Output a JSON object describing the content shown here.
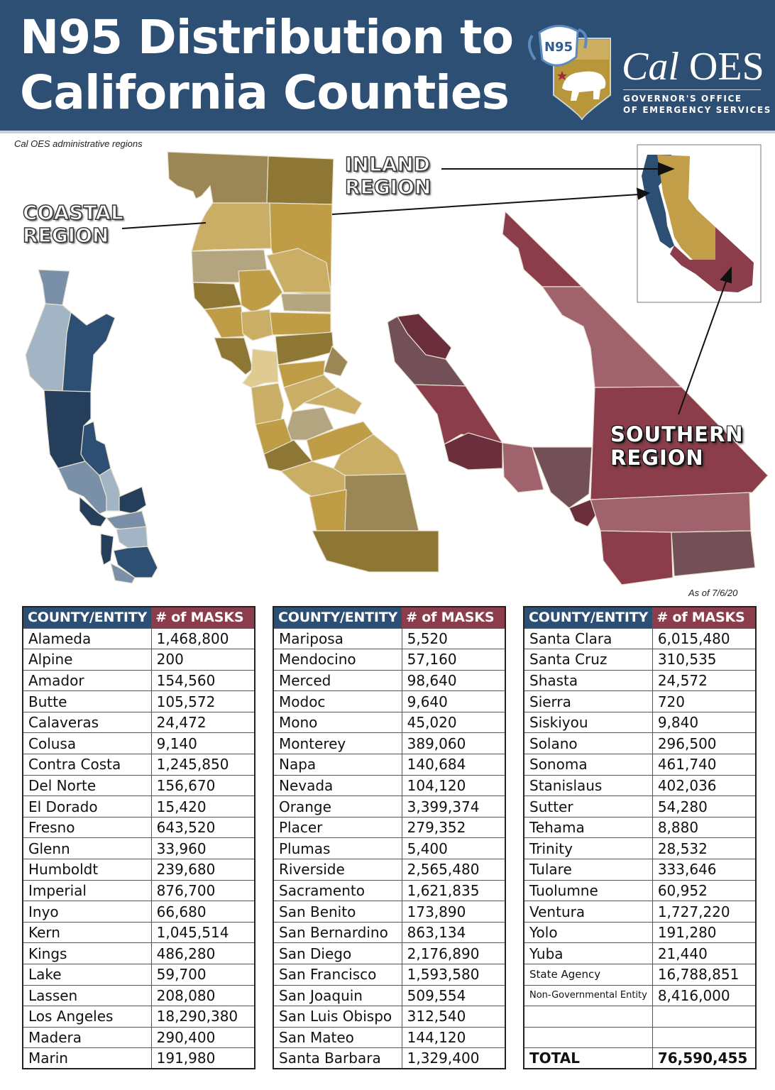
{
  "header": {
    "title_line1": "N95 Distribution to",
    "title_line2": "California Counties",
    "background_color": "#2e4f74",
    "logo": {
      "mask_label": "N95",
      "brand": "Cal OES",
      "brand_italic": "Cal",
      "brand_rest": " OES",
      "subtitle_line1": "GOVERNOR'S OFFICE",
      "subtitle_line2": "OF EMERGENCY SERVICES",
      "shield_color": "#b8963a",
      "star_color": "#a3283a"
    }
  },
  "map": {
    "caption": "Cal OES administrative regions",
    "regions": [
      {
        "name": "coastal",
        "line1": "COASTAL",
        "line2": "REGION",
        "color": "#2e4f74"
      },
      {
        "name": "inland",
        "line1": "INLAND",
        "line2": "REGION",
        "color": "#c19e47"
      },
      {
        "name": "southern",
        "line1": "SOUTHERN",
        "line2": "REGION",
        "color": "#8b3d4b"
      }
    ],
    "as_of": "As of  7/6/20"
  },
  "table": {
    "col_county": "COUNTY/ENTITY",
    "col_masks": "# of MASKS",
    "header_county_color": "#2e4f74",
    "header_masks_color": "#8b3d4b",
    "columns": [
      [
        {
          "county": "Alameda",
          "masks": "1,468,800"
        },
        {
          "county": "Alpine",
          "masks": "200"
        },
        {
          "county": "Amador",
          "masks": "154,560"
        },
        {
          "county": "Butte",
          "masks": "105,572"
        },
        {
          "county": "Calaveras",
          "masks": "24,472"
        },
        {
          "county": "Colusa",
          "masks": "9,140"
        },
        {
          "county": "Contra Costa",
          "masks": "1,245,850"
        },
        {
          "county": "Del Norte",
          "masks": "156,670"
        },
        {
          "county": "El Dorado",
          "masks": "15,420"
        },
        {
          "county": "Fresno",
          "masks": "643,520"
        },
        {
          "county": "Glenn",
          "masks": "33,960"
        },
        {
          "county": "Humboldt",
          "masks": "239,680"
        },
        {
          "county": "Imperial",
          "masks": "876,700"
        },
        {
          "county": "Inyo",
          "masks": "66,680"
        },
        {
          "county": "Kern",
          "masks": "1,045,514"
        },
        {
          "county": "Kings",
          "masks": "486,280"
        },
        {
          "county": "Lake",
          "masks": "59,700"
        },
        {
          "county": "Lassen",
          "masks": "208,080"
        },
        {
          "county": "Los Angeles",
          "masks": "18,290,380"
        },
        {
          "county": "Madera",
          "masks": "290,400"
        },
        {
          "county": "Marin",
          "masks": "191,980"
        }
      ],
      [
        {
          "county": "Mariposa",
          "masks": "5,520"
        },
        {
          "county": "Mendocino",
          "masks": "57,160"
        },
        {
          "county": "Merced",
          "masks": "98,640"
        },
        {
          "county": "Modoc",
          "masks": "9,640"
        },
        {
          "county": "Mono",
          "masks": "45,020"
        },
        {
          "county": "Monterey",
          "masks": "389,060"
        },
        {
          "county": "Napa",
          "masks": "140,684"
        },
        {
          "county": "Nevada",
          "masks": "104,120"
        },
        {
          "county": "Orange",
          "masks": "3,399,374"
        },
        {
          "county": "Placer",
          "masks": "279,352"
        },
        {
          "county": "Plumas",
          "masks": "5,400"
        },
        {
          "county": "Riverside",
          "masks": "2,565,480"
        },
        {
          "county": "Sacramento",
          "masks": "1,621,835"
        },
        {
          "county": "San Benito",
          "masks": "173,890"
        },
        {
          "county": "San Bernardino",
          "masks": "863,134"
        },
        {
          "county": "San Diego",
          "masks": "2,176,890"
        },
        {
          "county": "San Francisco",
          "masks": "1,593,580"
        },
        {
          "county": "San Joaquin",
          "masks": "509,554"
        },
        {
          "county": "San Luis Obispo",
          "masks": "312,540"
        },
        {
          "county": "San Mateo",
          "masks": "144,120"
        },
        {
          "county": "Santa Barbara",
          "masks": "1,329,400"
        }
      ],
      [
        {
          "county": "Santa Clara",
          "masks": "6,015,480"
        },
        {
          "county": "Santa Cruz",
          "masks": "310,535"
        },
        {
          "county": "Shasta",
          "masks": "24,572"
        },
        {
          "county": "Sierra",
          "masks": "720"
        },
        {
          "county": "Siskiyou",
          "masks": "9,840"
        },
        {
          "county": "Solano",
          "masks": "296,500"
        },
        {
          "county": "Sonoma",
          "masks": "461,740"
        },
        {
          "county": "Stanislaus",
          "masks": "402,036"
        },
        {
          "county": "Sutter",
          "masks": "54,280"
        },
        {
          "county": "Tehama",
          "masks": "8,880"
        },
        {
          "county": "Trinity",
          "masks": "28,532"
        },
        {
          "county": "Tulare",
          "masks": "333,646"
        },
        {
          "county": "Tuolumne",
          "masks": "60,952"
        },
        {
          "county": "Ventura",
          "masks": "1,727,220"
        },
        {
          "county": "Yolo",
          "masks": "191,280"
        },
        {
          "county": "Yuba",
          "masks": "21,440"
        },
        {
          "county": "State Agency",
          "masks": "16,788,851"
        },
        {
          "county": "Non-Governmental Entity",
          "masks": "8,416,000"
        },
        {
          "county": "",
          "masks": ""
        },
        {
          "county": "",
          "masks": ""
        },
        {
          "county": "TOTAL",
          "masks": "76,590,455"
        }
      ]
    ]
  }
}
